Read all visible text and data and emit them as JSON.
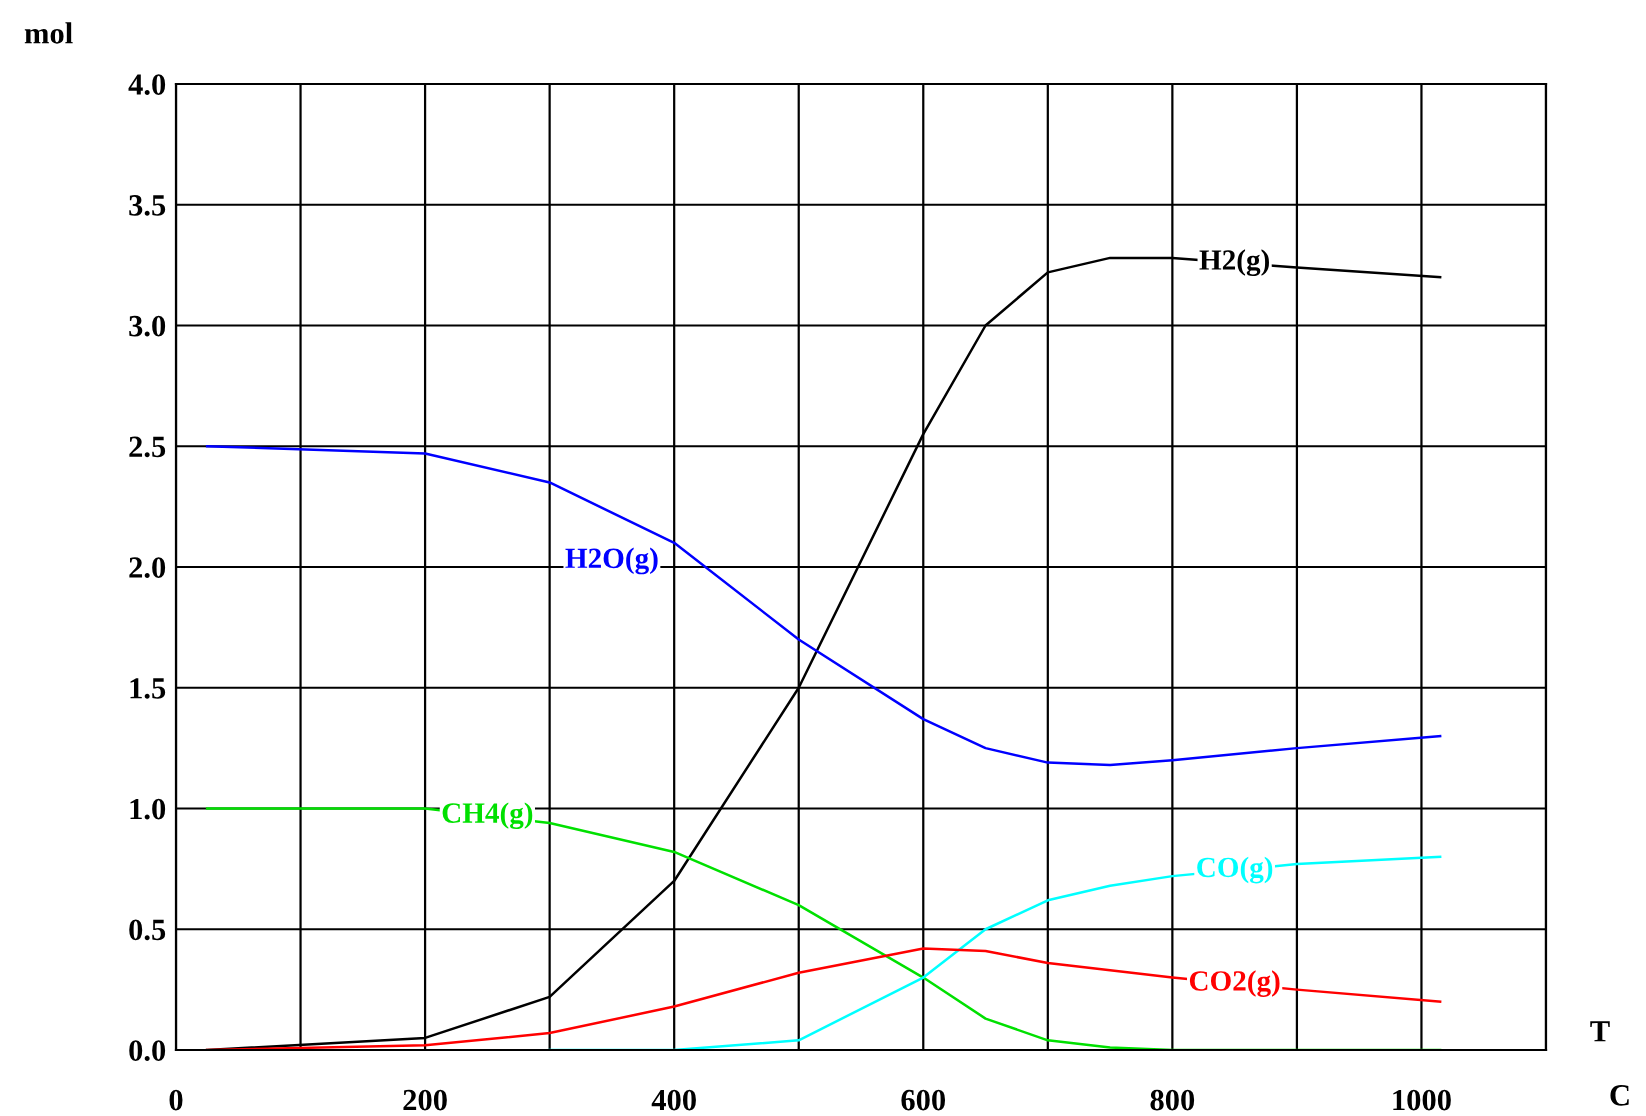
{
  "chart_data": {
    "type": "line",
    "ylabel": "mol",
    "xlabel": "T",
    "annotations": [
      "C"
    ],
    "xlim": [
      0,
      1100
    ],
    "xticks": [
      0,
      200,
      400,
      600,
      800,
      1000
    ],
    "ylim": [
      0,
      4
    ],
    "yticks": [
      {
        "value": 0,
        "label": "0.0"
      },
      {
        "value": 0.5,
        "label": "0.5"
      },
      {
        "value": 1,
        "label": "1.0"
      },
      {
        "value": 1.5,
        "label": "1.5"
      },
      {
        "value": 2,
        "label": "2.0"
      },
      {
        "value": 2.5,
        "label": "2.5"
      },
      {
        "value": 3,
        "label": "3.0"
      },
      {
        "value": 3.5,
        "label": "3.5"
      },
      {
        "value": 4,
        "label": "4.0"
      }
    ],
    "grid": true,
    "legend": false,
    "marker": "none",
    "line_style": "solid",
    "x": [
      25,
      200,
      300,
      400,
      500,
      600,
      650,
      700,
      750,
      800,
      900,
      1015
    ],
    "series": [
      {
        "name": "H2(g)",
        "color": "#000000",
        "values": [
          0,
          0.05,
          0.22,
          0.7,
          1.5,
          2.55,
          3.0,
          3.22,
          3.28,
          3.28,
          3.24,
          3.2
        ]
      },
      {
        "name": "H2O(g)",
        "color": "#0000ff",
        "values": [
          2.5,
          2.47,
          2.35,
          2.1,
          1.7,
          1.37,
          1.25,
          1.19,
          1.18,
          1.2,
          1.25,
          1.3
        ]
      },
      {
        "name": "CH4(g)",
        "color": "#00e000",
        "values": [
          1.0,
          1.0,
          0.94,
          0.82,
          0.6,
          0.3,
          0.13,
          0.04,
          0.01,
          0,
          0,
          0
        ]
      },
      {
        "name": "CO(g)",
        "color": "#00ffff",
        "values": [
          null,
          null,
          0,
          0,
          0.04,
          0.3,
          0.5,
          0.62,
          0.68,
          0.72,
          0.77,
          0.8
        ]
      },
      {
        "name": "CO2(g)",
        "color": "#ff0000",
        "values": [
          0,
          0.02,
          0.07,
          0.18,
          0.32,
          0.42,
          0.41,
          0.36,
          0.33,
          0.3,
          0.25,
          0.2
        ]
      }
    ]
  }
}
